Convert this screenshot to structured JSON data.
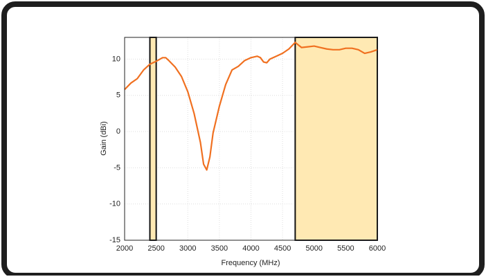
{
  "chart_data": {
    "type": "line",
    "xlabel": "Frequency (MHz)",
    "ylabel": "Gain (dBi)",
    "x": [
      2000,
      2100,
      2200,
      2300,
      2400,
      2500,
      2600,
      2650,
      2700,
      2800,
      2900,
      3000,
      3100,
      3200,
      3250,
      3300,
      3350,
      3400,
      3500,
      3600,
      3700,
      3800,
      3900,
      4000,
      4100,
      4150,
      4200,
      4250,
      4300,
      4400,
      4500,
      4600,
      4700,
      4800,
      4900,
      5000,
      5100,
      5200,
      5300,
      5400,
      5500,
      5600,
      5700,
      5800,
      5900,
      6000
    ],
    "series": [
      {
        "color": "#f07020",
        "values": [
          5.8,
          6.7,
          7.3,
          8.5,
          9.3,
          9.7,
          10.2,
          10.2,
          9.8,
          8.9,
          7.6,
          5.5,
          2.5,
          -1.5,
          -4.5,
          -5.3,
          -3.5,
          -0.2,
          3.5,
          6.5,
          8.5,
          9.0,
          9.8,
          10.2,
          10.4,
          10.2,
          9.6,
          9.5,
          10.0,
          10.4,
          10.8,
          11.4,
          12.3,
          11.6,
          11.7,
          11.8,
          11.6,
          11.4,
          11.3,
          11.3,
          11.5,
          11.5,
          11.3,
          10.8,
          11.0,
          11.3
        ]
      }
    ],
    "bands": [
      [
        2400,
        2500
      ],
      [
        4700,
        6000
      ]
    ],
    "band_color": "#ffe9b3",
    "xlim": [
      2000,
      6000
    ],
    "xticks": [
      2000,
      2500,
      3000,
      3500,
      4000,
      4500,
      5000,
      5500,
      6000
    ],
    "ylim": [
      -15,
      13
    ],
    "yticks": [
      -15,
      -10,
      -5,
      0,
      5,
      10
    ],
    "grid": true
  }
}
